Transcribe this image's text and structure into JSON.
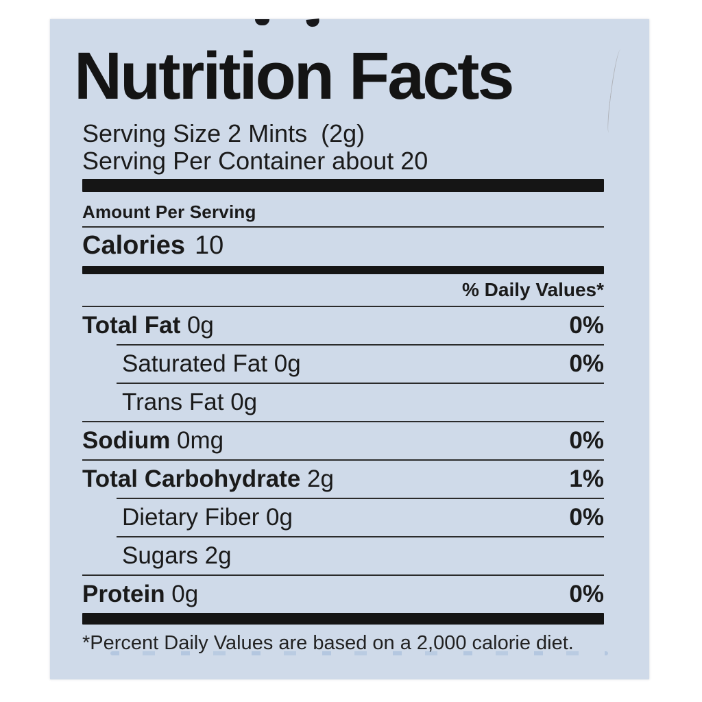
{
  "colors": {
    "page_background": "#ffffff",
    "label_background": "#cfdae9",
    "ink": "#1a1a1a"
  },
  "label": {
    "title": "Nutrition Facts",
    "serving_size": "Serving Size 2 Mints  (2g)",
    "servings_per_container": "Serving Per Container about 20",
    "amount_per_serving": "Amount Per Serving",
    "calories_label": "Calories",
    "calories_value": "10",
    "daily_values_header": "% Daily Values*",
    "rows": [
      {
        "name": "Total Fat",
        "amount": "0g",
        "dv": "0%",
        "style": "main"
      },
      {
        "name": "Saturated Fat",
        "amount": "0g",
        "dv": "0%",
        "style": "sub"
      },
      {
        "name": "Trans Fat",
        "amount": "0g",
        "dv": "",
        "style": "sub"
      },
      {
        "name": "Sodium",
        "amount": "0mg",
        "dv": "0%",
        "style": "main"
      },
      {
        "name": "Total Carbohydrate",
        "amount": "2g",
        "dv": "1%",
        "style": "main"
      },
      {
        "name": "Dietary Fiber",
        "amount": "0g",
        "dv": "0%",
        "style": "sub"
      },
      {
        "name": "Sugars",
        "amount": "2g",
        "dv": "",
        "style": "sub"
      },
      {
        "name": "Protein",
        "amount": "0g",
        "dv": "0%",
        "style": "main"
      }
    ],
    "footnote": "*Percent Daily Values are based on a 2,000 calorie diet."
  }
}
